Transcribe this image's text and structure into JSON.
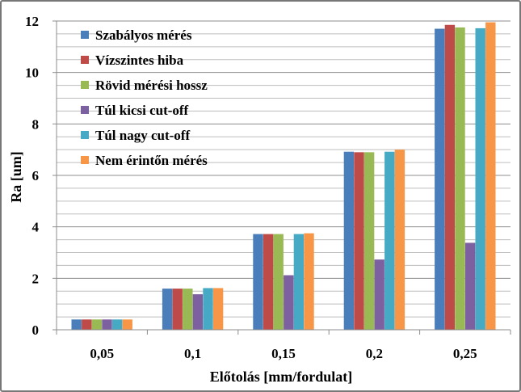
{
  "chart_data": {
    "type": "bar",
    "xlabel": "Előtolás [mm/fordulat]",
    "ylabel": "Ra [um]",
    "ylim": [
      0,
      12
    ],
    "yticks": [
      0,
      2,
      4,
      6,
      8,
      10,
      12
    ],
    "grid": true,
    "legend_position": "top-left",
    "categories": [
      "0,05",
      "0,1",
      "0,15",
      "0,2",
      "0,25"
    ],
    "series": [
      {
        "name": "Szabályos mérés",
        "color": "#4a7ebb",
        "values": [
          0.4,
          1.6,
          3.72,
          6.92,
          11.7
        ]
      },
      {
        "name": "Vízszintes hiba",
        "color": "#be4b48",
        "values": [
          0.4,
          1.6,
          3.72,
          6.9,
          11.85
        ]
      },
      {
        "name": "Rövid mérési hossz",
        "color": "#98b954",
        "values": [
          0.4,
          1.6,
          3.72,
          6.9,
          11.75
        ]
      },
      {
        "name": "Túl kicsi cut-off",
        "color": "#7d60a0",
        "values": [
          0.4,
          1.38,
          2.12,
          2.73,
          3.38
        ]
      },
      {
        "name": "Túl nagy cut-off",
        "color": "#46aac5",
        "values": [
          0.4,
          1.62,
          3.72,
          6.92,
          11.72
        ]
      },
      {
        "name": "Nem érintőn mérés",
        "color": "#f79646",
        "values": [
          0.4,
          1.62,
          3.75,
          7.0,
          11.95
        ]
      }
    ]
  }
}
